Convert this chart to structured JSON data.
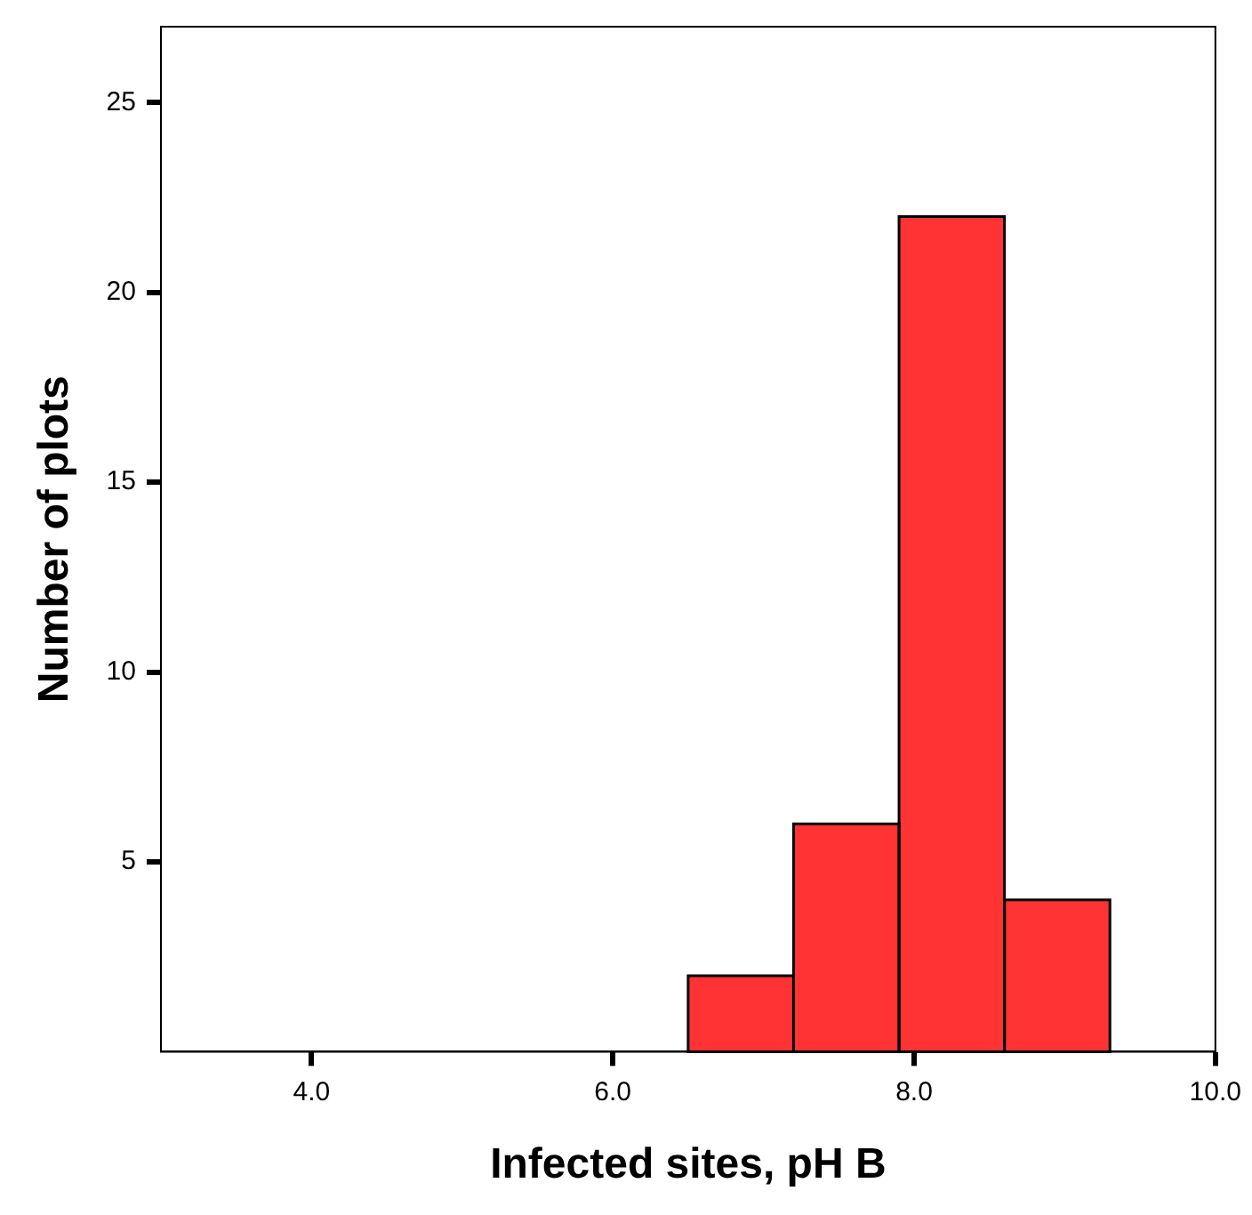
{
  "chart_data": {
    "type": "histogram",
    "xlabel": "Infected sites, pH B",
    "ylabel": "Number of plots",
    "bins": [
      6.5,
      7.2,
      7.9,
      8.6,
      9.3
    ],
    "values": [
      2,
      6,
      22,
      4
    ],
    "color": "#ff3333",
    "xlim": [
      3.0,
      10.0
    ],
    "xticks": [
      {
        "value": 4,
        "label": "4.0"
      },
      {
        "value": 6,
        "label": "6.0"
      },
      {
        "value": 8,
        "label": "8.0"
      },
      {
        "value": 10,
        "label": "10.0"
      }
    ],
    "ylim": [
      0,
      27
    ],
    "yticks": [
      5,
      10,
      15,
      20,
      25
    ],
    "grid": false
  }
}
